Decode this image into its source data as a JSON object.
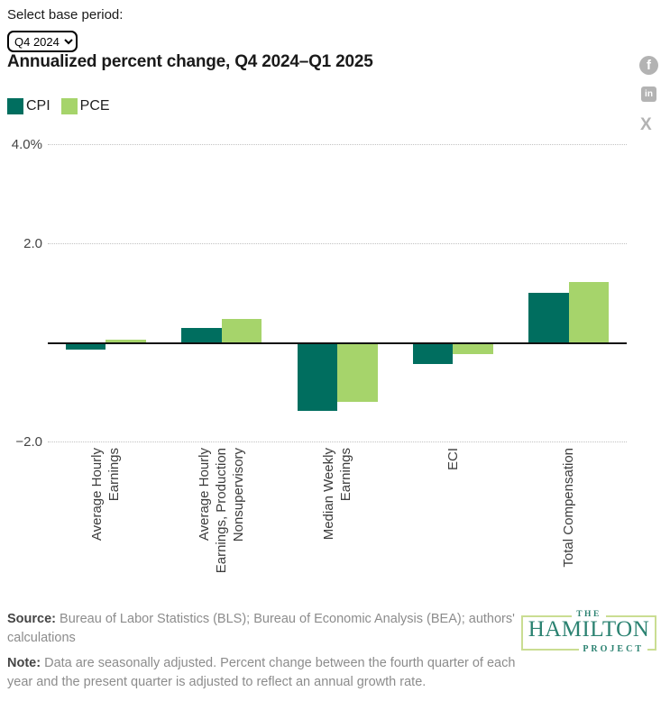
{
  "controls": {
    "label": "Select base period:",
    "selected_option": "Q4 2024"
  },
  "header": {
    "title": "Annualized percent change, Q4 2024–Q1 2025"
  },
  "social": {
    "facebook_glyph": "f",
    "linkedin_glyph": "in",
    "x_glyph": "X"
  },
  "legend": [
    {
      "label": "CPI",
      "color": "#006e5f"
    },
    {
      "label": "PCE",
      "color": "#a6d46b"
    }
  ],
  "chart_data": {
    "type": "bar",
    "title": "Annualized percent change, Q4 2024–Q1 2025",
    "categories": [
      "Average Hourly Earnings",
      "Average Hourly Earnings, Production Nonsupervisory",
      "Median Weekly Earnings",
      "ECI",
      "Total Compensation"
    ],
    "category_label_lines": [
      [
        "Average Hourly",
        "Earnings"
      ],
      [
        "Average Hourly",
        "Earnings, Production",
        "Nonsupervisory"
      ],
      [
        "Median Weekly",
        "Earnings"
      ],
      [
        "ECI"
      ],
      [
        "Total Compensation"
      ]
    ],
    "series": [
      {
        "name": "CPI",
        "color": "#006e5f",
        "values": [
          -0.12,
          0.31,
          -1.37,
          -0.41,
          1.01
        ]
      },
      {
        "name": "PCE",
        "color": "#a6d46b",
        "values": [
          0.08,
          0.49,
          -1.18,
          -0.21,
          1.23
        ]
      }
    ],
    "y_ticks": [
      {
        "value": 4.0,
        "label": "4.0%"
      },
      {
        "value": 2.0,
        "label": "2.0"
      },
      {
        "value": -2.0,
        "label": "−2.0"
      }
    ],
    "ylim": [
      -2.6,
      4.2
    ],
    "ylabel": "",
    "xlabel": "",
    "grid": "dotted horizontal",
    "legend_position": "top-left"
  },
  "footer": {
    "source_label": "Source:",
    "source_text": " Bureau of Labor Statistics (BLS); Bureau of Economic Analysis (BEA); authors' calculations",
    "note_label": "Note:",
    "note_text": " Data are seasonally adjusted. Percent change between the fourth quarter of each year and the present quarter is adjusted to reflect an annual growth rate.",
    "logo": {
      "the": "THE",
      "hamilton": "HAMILTON",
      "project": "PROJECT"
    }
  }
}
